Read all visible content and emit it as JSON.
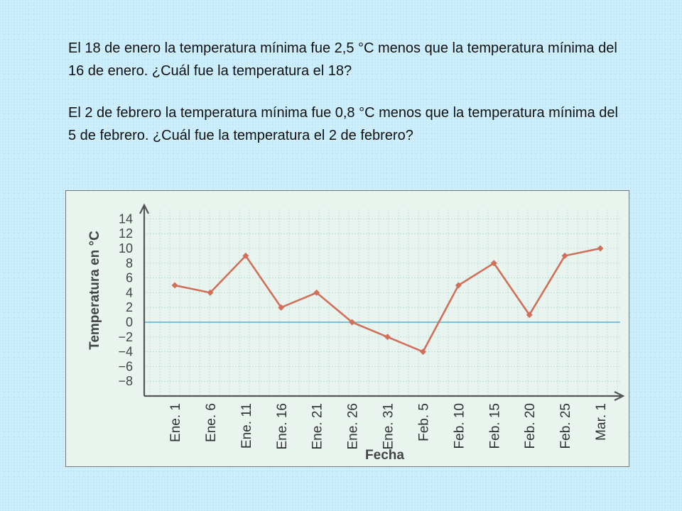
{
  "questions": [
    "El 18 de enero la temperatura mínima fue 2,5 °C menos que la temperatura mínima del 16 de enero. ¿Cuál fue la temperatura el 18?",
    "El 2 de febrero la temperatura mínima fue 0,8 °C menos que la temperatura mínima del 5 de febrero. ¿Cuál fue la temperatura el 2 de febrero?"
  ],
  "colors": {
    "background": "#c7ecfb",
    "line": "#d0705a",
    "zero_line": "#5fb0cf",
    "grid": "#7ec6cf"
  },
  "chart_data": {
    "type": "line",
    "title": "",
    "xlabel": "Fecha",
    "ylabel": "Temperatura en °C",
    "categories": [
      "Ene. 1",
      "Ene. 6",
      "Ene. 11",
      "Ene. 16",
      "Ene. 21",
      "Ene. 26",
      "Ene. 31",
      "Feb. 5",
      "Feb. 10",
      "Feb. 15",
      "Feb. 20",
      "Feb. 25",
      "Mar. 1"
    ],
    "series": [
      {
        "values": [
          5,
          4,
          9,
          2,
          4,
          0,
          -2,
          -4,
          5,
          8,
          1,
          9,
          10
        ]
      }
    ],
    "y_ticks": [
      "14",
      "12",
      "10",
      "8",
      "6",
      "4",
      "2",
      "0",
      "−2",
      "−4",
      "−6",
      "−8"
    ],
    "ylim": [
      -8,
      14
    ],
    "grid": true,
    "zero_line": true
  }
}
